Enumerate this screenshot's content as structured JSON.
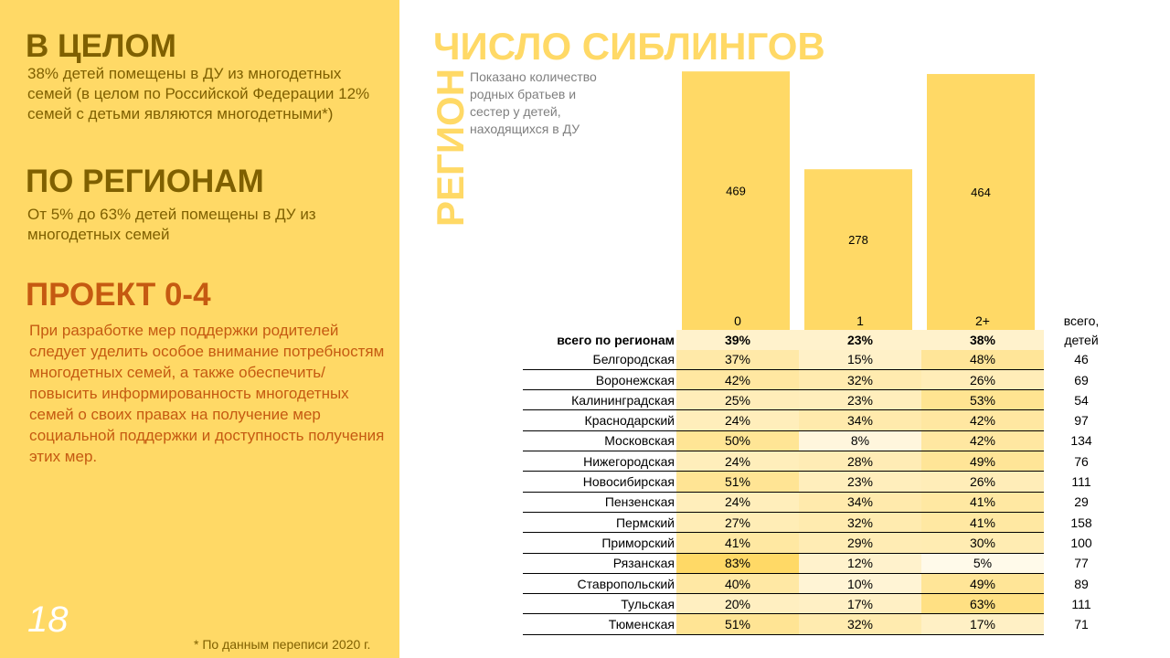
{
  "left": {
    "overall_title": "В ЦЕЛОМ",
    "overall_text": "38% детей помещены в ДУ из многодетных семей (в целом по Российской Федерации 12% семей с детьми являются многодетными*)",
    "regions_title": "ПО РЕГИОНАМ",
    "regions_text": "От 5% до 63% детей помещены в ДУ из многодетных семей",
    "project_title": "ПРОЕКТ 0-4",
    "project_text": "При разработке мер поддержки родителей следует уделить особое внимание потребностям многодетных семей, а также обеспечить/повысить информированность многодетных семей о своих правах на получение мер социальной поддержки и доступность получения этих мер.",
    "page_number": "18",
    "footnote": "* По данным переписи 2020 г."
  },
  "colors": {
    "panel": "#ffd966",
    "heading_dark": "#7f6000",
    "heading_orange": "#c55a11",
    "bar": "#ffd966",
    "heat_low": "#fff2cc",
    "heat_high": "#ffd966"
  },
  "chart_data": {
    "type": "bar",
    "title": "ЧИСЛО СИБЛИНГОВ",
    "note": "Показано количество родных братьев и сестер у детей, находящихся в ДУ",
    "categories": [
      "0",
      "1",
      "2+"
    ],
    "values": [
      469,
      278,
      464
    ],
    "ylim": [
      0,
      480
    ],
    "grid": false
  },
  "table": {
    "region_label": "РЕГИОН",
    "total_header_line1": "всего,",
    "total_header_line2": "детей",
    "columns": [
      "0",
      "1",
      "2+"
    ],
    "overall": {
      "name": "всего по регионам",
      "values": [
        "39%",
        "23%",
        "38%"
      ],
      "pct": [
        39,
        23,
        38
      ]
    },
    "rows": [
      {
        "name": "Белгородская",
        "values": [
          "37%",
          "15%",
          "48%"
        ],
        "pct": [
          37,
          15,
          48
        ],
        "total": "46"
      },
      {
        "name": "Воронежская",
        "values": [
          "42%",
          "32%",
          "26%"
        ],
        "pct": [
          42,
          32,
          26
        ],
        "total": "69"
      },
      {
        "name": "Калининградская",
        "values": [
          "25%",
          "23%",
          "53%"
        ],
        "pct": [
          25,
          23,
          53
        ],
        "total": "54"
      },
      {
        "name": "Краснодарский",
        "values": [
          "24%",
          "34%",
          "42%"
        ],
        "pct": [
          24,
          34,
          42
        ],
        "total": "97"
      },
      {
        "name": "Московская",
        "values": [
          "50%",
          "8%",
          "42%"
        ],
        "pct": [
          50,
          8,
          42
        ],
        "total": "134"
      },
      {
        "name": "Нижегородская",
        "values": [
          "24%",
          "28%",
          "49%"
        ],
        "pct": [
          24,
          28,
          49
        ],
        "total": "76"
      },
      {
        "name": "Новосибирская",
        "values": [
          "51%",
          "23%",
          "26%"
        ],
        "pct": [
          51,
          23,
          26
        ],
        "total": "111"
      },
      {
        "name": "Пензенская",
        "values": [
          "24%",
          "34%",
          "41%"
        ],
        "pct": [
          24,
          34,
          41
        ],
        "total": "29"
      },
      {
        "name": "Пермский",
        "values": [
          "27%",
          "32%",
          "41%"
        ],
        "pct": [
          27,
          32,
          41
        ],
        "total": "158"
      },
      {
        "name": "Приморский",
        "values": [
          "41%",
          "29%",
          "30%"
        ],
        "pct": [
          41,
          29,
          30
        ],
        "total": "100"
      },
      {
        "name": "Рязанская",
        "values": [
          "83%",
          "12%",
          "5%"
        ],
        "pct": [
          83,
          12,
          5
        ],
        "total": "77"
      },
      {
        "name": "Ставропольский",
        "values": [
          "40%",
          "10%",
          "49%"
        ],
        "pct": [
          40,
          10,
          49
        ],
        "total": "89"
      },
      {
        "name": "Тульская",
        "values": [
          "20%",
          "17%",
          "63%"
        ],
        "pct": [
          20,
          17,
          63
        ],
        "total": "111"
      },
      {
        "name": "Тюменская",
        "values": [
          "51%",
          "32%",
          "17%"
        ],
        "pct": [
          51,
          32,
          17
        ],
        "total": "71"
      }
    ]
  }
}
